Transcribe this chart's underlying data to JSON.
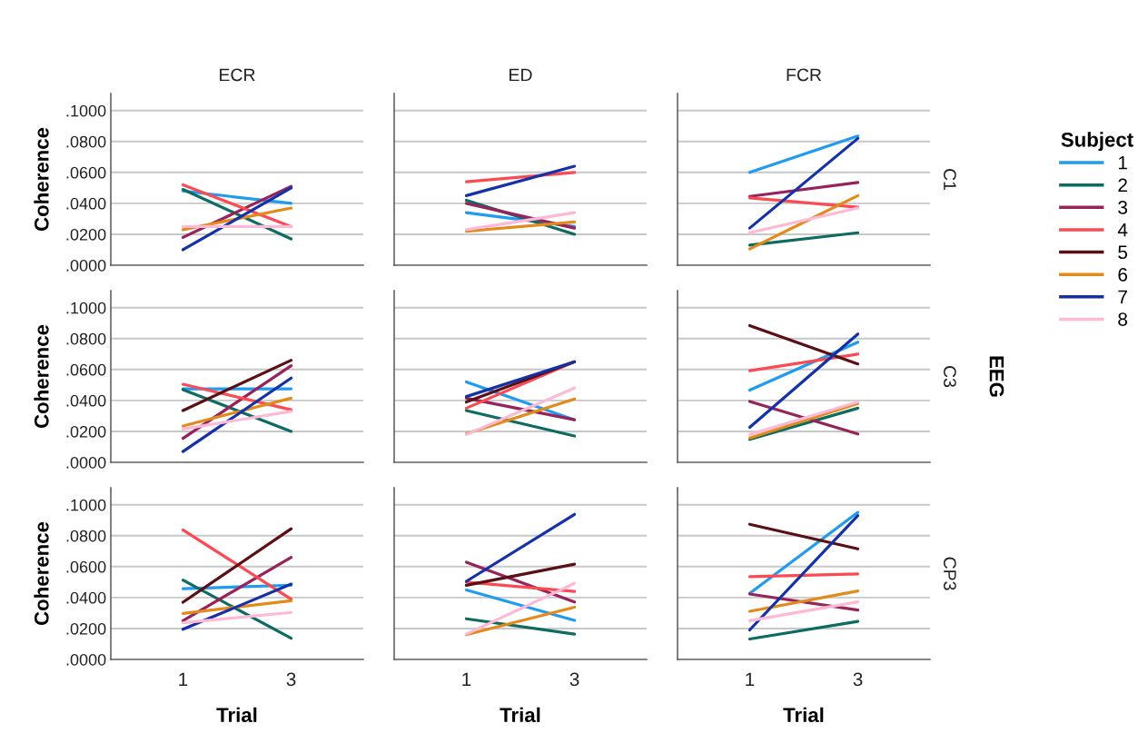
{
  "chart_data": [
    {
      "type": "line",
      "title": "ECR",
      "ylabel": "Coherence",
      "categories": [
        "1",
        "3"
      ],
      "ylim": [
        0,
        0.111
      ],
      "yticks": [
        {
          "value": 0,
          "label": ".0000"
        },
        {
          "value": 0.02,
          "label": ".0200"
        },
        {
          "value": 0.04,
          "label": ".0400"
        },
        {
          "value": 0.06,
          "label": ".0600"
        },
        {
          "value": 0.08,
          "label": ".0800"
        },
        {
          "value": 0.1,
          "label": ".1000"
        }
      ],
      "grid": "y",
      "tick_labels": "y",
      "series": [
        {
          "color": "#1f9bf0",
          "values": [
            0.048,
            0.04
          ]
        },
        {
          "color": "#0d6b62",
          "values": [
            0.049,
            0.017
          ]
        },
        {
          "color": "#96235a",
          "values": [
            0.018,
            0.051
          ]
        },
        {
          "color": "#fa4b55",
          "values": [
            0.052,
            0.025
          ]
        },
        {
          "color": "#e48a1a",
          "values": [
            0.023,
            0.037
          ]
        },
        {
          "color": "#1531a8",
          "values": [
            0.01,
            0.05
          ]
        },
        {
          "color": "#fdb9d6",
          "values": [
            0.025,
            0.025
          ]
        }
      ]
    },
    {
      "type": "line",
      "title": "ED",
      "categories": [
        "1",
        "3"
      ],
      "ylim": [
        0,
        0.111
      ],
      "yticks": [
        {
          "value": 0,
          "label": null
        },
        {
          "value": 0.02,
          "label": null
        },
        {
          "value": 0.04,
          "label": null
        },
        {
          "value": 0.06,
          "label": null
        },
        {
          "value": 0.08,
          "label": null
        },
        {
          "value": 0.1,
          "label": null
        }
      ],
      "grid": "y",
      "tick_labels": false,
      "series": [
        {
          "color": "#1f9bf0",
          "values": [
            0.034,
            0.025
          ]
        },
        {
          "color": "#0d6b62",
          "values": [
            0.042,
            0.02
          ]
        },
        {
          "color": "#96235a",
          "values": [
            0.04,
            0.024
          ]
        },
        {
          "color": "#fa4b55",
          "values": [
            0.054,
            0.06
          ]
        },
        {
          "color": "#e48a1a",
          "values": [
            0.022,
            0.028
          ]
        },
        {
          "color": "#1531a8",
          "values": [
            0.045,
            0.064
          ]
        },
        {
          "color": "#fdb9d6",
          "values": [
            0.023,
            0.034
          ]
        }
      ]
    },
    {
      "type": "line",
      "title": "FCR",
      "y2label": "C1",
      "legend_title": "Subject",
      "legend": "right",
      "categories": [
        "1",
        "3"
      ],
      "ylim": [
        0,
        0.111
      ],
      "yticks": [
        {
          "value": 0,
          "label": null
        },
        {
          "value": 0.02,
          "label": null
        },
        {
          "value": 0.04,
          "label": null
        },
        {
          "value": 0.06,
          "label": null
        },
        {
          "value": 0.08,
          "label": null
        },
        {
          "value": 0.1,
          "label": null
        }
      ],
      "grid": "y",
      "tick_labels": false,
      "series": [
        {
          "name": "1",
          "color": "#1f9bf0",
          "values": [
            0.06,
            0.0835
          ]
        },
        {
          "name": "2",
          "color": "#0d6b62",
          "values": [
            0.013,
            0.021
          ]
        },
        {
          "name": "3",
          "color": "#96235a",
          "values": [
            0.0445,
            0.0535
          ]
        },
        {
          "name": "4",
          "color": "#fa4b55",
          "values": [
            0.0435,
            0.0375
          ]
        },
        {
          "name": "5",
          "color": "#5a0f14",
          "values": [
            null,
            null
          ]
        },
        {
          "name": "6",
          "color": "#e48a1a",
          "values": [
            0.0105,
            0.045
          ]
        },
        {
          "name": "7",
          "color": "#1531a8",
          "values": [
            0.024,
            0.082
          ]
        },
        {
          "name": "8",
          "color": "#fdb9d6",
          "values": [
            0.021,
            0.037
          ]
        }
      ]
    },
    {
      "type": "line",
      "ylabel": "Coherence",
      "categories": [
        "1",
        "3"
      ],
      "ylim": [
        0,
        0.111
      ],
      "yticks": [
        {
          "value": 0,
          "label": ".0000"
        },
        {
          "value": 0.02,
          "label": ".0200"
        },
        {
          "value": 0.04,
          "label": ".0400"
        },
        {
          "value": 0.06,
          "label": ".0600"
        },
        {
          "value": 0.08,
          "label": ".0800"
        },
        {
          "value": 0.1,
          "label": ".1000"
        }
      ],
      "grid": "y",
      "tick_labels": "y",
      "series": [
        {
          "color": "#1f9bf0",
          "values": [
            0.0475,
            0.0475
          ]
        },
        {
          "color": "#0d6b62",
          "values": [
            0.047,
            0.02
          ]
        },
        {
          "color": "#96235a",
          "values": [
            0.0155,
            0.0625
          ]
        },
        {
          "color": "#fa4b55",
          "values": [
            0.0505,
            0.034
          ]
        },
        {
          "color": "#5a0f14",
          "values": [
            0.0335,
            0.066
          ]
        },
        {
          "color": "#e48a1a",
          "values": [
            0.0235,
            0.0415
          ]
        },
        {
          "color": "#1531a8",
          "values": [
            0.007,
            0.0545
          ]
        },
        {
          "color": "#fdb9d6",
          "values": [
            0.0215,
            0.033
          ]
        }
      ]
    },
    {
      "type": "line",
      "categories": [
        "1",
        "3"
      ],
      "ylim": [
        0,
        0.111
      ],
      "yticks": [
        {
          "value": 0,
          "label": null
        },
        {
          "value": 0.02,
          "label": null
        },
        {
          "value": 0.04,
          "label": null
        },
        {
          "value": 0.06,
          "label": null
        },
        {
          "value": 0.08,
          "label": null
        },
        {
          "value": 0.1,
          "label": null
        }
      ],
      "grid": "y",
      "tick_labels": false,
      "series": [
        {
          "color": "#1f9bf0",
          "values": [
            0.052,
            0.0275
          ]
        },
        {
          "color": "#0d6b62",
          "values": [
            0.0335,
            0.017
          ]
        },
        {
          "color": "#96235a",
          "values": [
            0.0415,
            0.0275
          ]
        },
        {
          "color": "#fa4b55",
          "values": [
            0.035,
            0.065
          ]
        },
        {
          "color": "#5a0f14",
          "values": [
            0.039,
            0.065
          ]
        },
        {
          "color": "#e48a1a",
          "values": [
            0.0185,
            0.041
          ]
        },
        {
          "color": "#1531a8",
          "values": [
            0.0425,
            0.065
          ]
        },
        {
          "color": "#fdb9d6",
          "values": [
            0.018,
            0.048
          ]
        }
      ]
    },
    {
      "type": "line",
      "y2label": "C3",
      "annotations": [
        "EEG"
      ],
      "categories": [
        "1",
        "3"
      ],
      "ylim": [
        0,
        0.111
      ],
      "yticks": [
        {
          "value": 0,
          "label": null
        },
        {
          "value": 0.02,
          "label": null
        },
        {
          "value": 0.04,
          "label": null
        },
        {
          "value": 0.06,
          "label": null
        },
        {
          "value": 0.08,
          "label": null
        },
        {
          "value": 0.1,
          "label": null
        }
      ],
      "grid": "y",
      "tick_labels": false,
      "series": [
        {
          "color": "#1f9bf0",
          "values": [
            0.0467,
            0.0777
          ]
        },
        {
          "color": "#0d6b62",
          "values": [
            0.0148,
            0.035
          ]
        },
        {
          "color": "#96235a",
          "values": [
            0.0394,
            0.0183
          ]
        },
        {
          "color": "#fa4b55",
          "values": [
            0.0592,
            0.07
          ]
        },
        {
          "color": "#5a0f14",
          "values": [
            0.0884,
            0.0636
          ]
        },
        {
          "color": "#e48a1a",
          "values": [
            0.0157,
            0.038
          ]
        },
        {
          "color": "#1531a8",
          "values": [
            0.0226,
            0.083
          ]
        },
        {
          "color": "#fdb9d6",
          "values": [
            0.018,
            0.039
          ]
        }
      ]
    },
    {
      "type": "line",
      "xlabel": "Trial",
      "ylabel": "Coherence",
      "categories": [
        "1",
        "3"
      ],
      "ylim": [
        0,
        0.111
      ],
      "yticks": [
        {
          "value": 0,
          "label": ".0000"
        },
        {
          "value": 0.02,
          "label": ".0200"
        },
        {
          "value": 0.04,
          "label": ".0400"
        },
        {
          "value": 0.06,
          "label": ".0600"
        },
        {
          "value": 0.08,
          "label": ".0800"
        },
        {
          "value": 0.1,
          "label": ".1000"
        }
      ],
      "grid": "y",
      "series": [
        {
          "color": "#1f9bf0",
          "values": [
            0.0457,
            0.048
          ]
        },
        {
          "color": "#0d6b62",
          "values": [
            0.0513,
            0.0137
          ]
        },
        {
          "color": "#96235a",
          "values": [
            0.025,
            0.066
          ]
        },
        {
          "color": "#fa4b55",
          "values": [
            0.0838,
            0.039
          ]
        },
        {
          "color": "#5a0f14",
          "values": [
            0.037,
            0.0845
          ]
        },
        {
          "color": "#e48a1a",
          "values": [
            0.0297,
            0.038
          ]
        },
        {
          "color": "#1531a8",
          "values": [
            0.0195,
            0.0487
          ]
        },
        {
          "color": "#fdb9d6",
          "values": [
            0.0237,
            0.0304
          ]
        }
      ]
    },
    {
      "type": "line",
      "xlabel": "Trial",
      "categories": [
        "1",
        "3"
      ],
      "ylim": [
        0,
        0.111
      ],
      "yticks": [
        {
          "value": 0,
          "label": null
        },
        {
          "value": 0.02,
          "label": null
        },
        {
          "value": 0.04,
          "label": null
        },
        {
          "value": 0.06,
          "label": null
        },
        {
          "value": 0.08,
          "label": null
        },
        {
          "value": 0.1,
          "label": null
        }
      ],
      "grid": "y",
      "tick_labels": "x",
      "series": [
        {
          "color": "#1f9bf0",
          "values": [
            0.0449,
            0.0253
          ]
        },
        {
          "color": "#0d6b62",
          "values": [
            0.0263,
            0.0164
          ]
        },
        {
          "color": "#96235a",
          "values": [
            0.0629,
            0.0371
          ]
        },
        {
          "color": "#fa4b55",
          "values": [
            0.05,
            0.044
          ]
        },
        {
          "color": "#5a0f14",
          "values": [
            0.0479,
            0.0616
          ]
        },
        {
          "color": "#e48a1a",
          "values": [
            0.016,
            0.0338
          ]
        },
        {
          "color": "#1531a8",
          "values": [
            0.0505,
            0.0938
          ]
        },
        {
          "color": "#fdb9d6",
          "values": [
            0.0164,
            0.0492
          ]
        }
      ]
    },
    {
      "type": "line",
      "xlabel": "Trial",
      "y2label": "CP3",
      "categories": [
        "1",
        "3"
      ],
      "ylim": [
        0,
        0.111
      ],
      "yticks": [
        {
          "value": 0,
          "label": null
        },
        {
          "value": 0.02,
          "label": null
        },
        {
          "value": 0.04,
          "label": null
        },
        {
          "value": 0.06,
          "label": null
        },
        {
          "value": 0.08,
          "label": null
        },
        {
          "value": 0.1,
          "label": null
        }
      ],
      "grid": "y",
      "tick_labels": "x",
      "series": [
        {
          "color": "#1f9bf0",
          "values": [
            0.0427,
            0.0951
          ]
        },
        {
          "color": "#0d6b62",
          "values": [
            0.0132,
            0.0246
          ]
        },
        {
          "color": "#96235a",
          "values": [
            0.0423,
            0.0319
          ]
        },
        {
          "color": "#fa4b55",
          "values": [
            0.0535,
            0.0553
          ]
        },
        {
          "color": "#5a0f14",
          "values": [
            0.0874,
            0.0715
          ]
        },
        {
          "color": "#e48a1a",
          "values": [
            0.0311,
            0.0443
          ]
        },
        {
          "color": "#1531a8",
          "values": [
            0.0191,
            0.093
          ]
        },
        {
          "color": "#fdb9d6",
          "values": [
            0.025,
            0.0372
          ]
        }
      ]
    }
  ]
}
